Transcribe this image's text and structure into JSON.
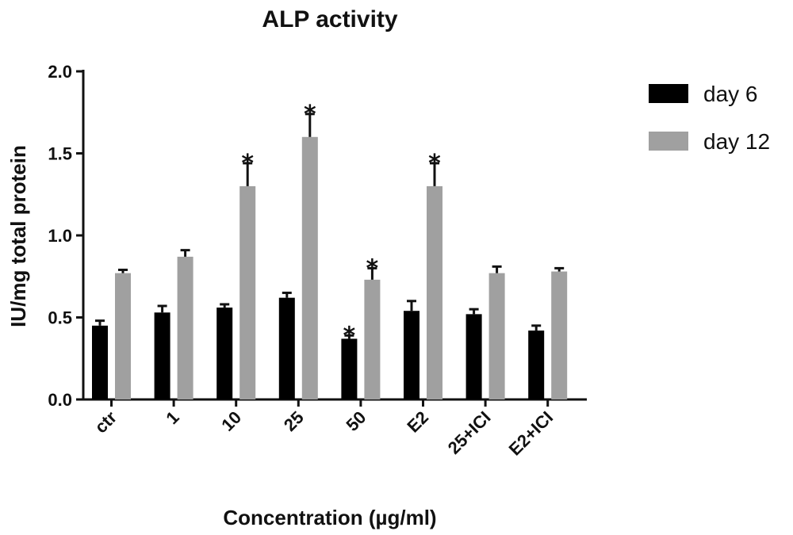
{
  "chart_data": {
    "type": "bar",
    "title": "ALP activity",
    "xlabel": "Concentration (µg/ml)",
    "ylabel": "IU/mg total protein",
    "ylim": [
      0,
      2.0
    ],
    "yticks": [
      "0.0",
      "0.5",
      "1.0",
      "1.5",
      "2.0"
    ],
    "categories": [
      "ctr",
      "1",
      "10",
      "25",
      "50",
      "E2",
      "25+ICI",
      "E2+ICI"
    ],
    "series": [
      {
        "name": "day 6",
        "color": "#000000",
        "values": [
          0.45,
          0.53,
          0.56,
          0.62,
          0.37,
          0.54,
          0.52,
          0.42
        ],
        "errors": [
          0.03,
          0.04,
          0.02,
          0.03,
          0.02,
          0.06,
          0.03,
          0.03
        ],
        "significant": [
          false,
          false,
          false,
          false,
          true,
          false,
          false,
          false
        ]
      },
      {
        "name": "day 12",
        "color": "#a0a0a0",
        "values": [
          0.77,
          0.87,
          1.3,
          1.6,
          0.73,
          1.3,
          0.77,
          0.78
        ],
        "errors": [
          0.02,
          0.04,
          0.14,
          0.14,
          0.07,
          0.14,
          0.04,
          0.02
        ],
        "significant": [
          false,
          false,
          true,
          true,
          true,
          true,
          false,
          false
        ]
      }
    ],
    "significance_marker": "*",
    "legend_position": "top-right",
    "grid": false
  }
}
